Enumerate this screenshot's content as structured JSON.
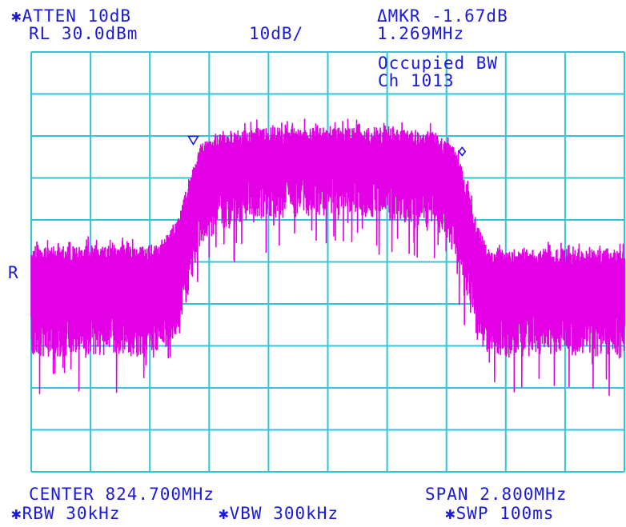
{
  "header": {
    "atten": "✱ATTEN 10dB",
    "ref_level": "RL 30.0dBm",
    "scale": "10dB/",
    "marker_delta": "ΔMKR -1.67dB",
    "marker_freq": "1.269MHz",
    "measurement": "Occupied BW",
    "channel": "Ch 1013"
  },
  "ref_marker_label": "R",
  "footer": {
    "center": "CENTER 824.700MHz",
    "span": "SPAN 2.800MHz",
    "rbw": "✱RBW 30kHz",
    "vbw": "✱VBW 300kHz",
    "sweep": "✱SWP 100ms"
  },
  "colors": {
    "text": "#1a1ad8",
    "grid": "#33c4d8",
    "trace": "#e400e4",
    "marker": "#1a1ad8"
  },
  "chart_data": {
    "type": "line",
    "title": "",
    "xlabel": "",
    "ylabel": "",
    "x_unit": "MHz",
    "y_unit": "dBm",
    "xlim": [
      823.3,
      826.1
    ],
    "ylim": [
      -70,
      30
    ],
    "grid": true,
    "divisions": {
      "x": 10,
      "y": 10
    },
    "series": [
      {
        "x": [
          823.3,
          823.6,
          823.9,
          823.95,
          824.0,
          824.05,
          824.1,
          824.2,
          824.4,
          824.6,
          824.8,
          825.0,
          825.2,
          825.3,
          825.35,
          825.4,
          825.45,
          825.5,
          825.8,
          826.1
        ],
        "y_peak": [
          -16,
          -16,
          -16,
          -13,
          -9,
          1,
          8,
          11,
          12,
          12,
          12,
          12,
          11,
          7,
          0,
          -10,
          -16,
          -17,
          -17,
          -17
        ],
        "y_floor": [
          -43,
          -42,
          -43,
          -41,
          -36,
          -26,
          -16,
          -12,
          -10,
          -9,
          -9,
          -10,
          -12,
          -18,
          -28,
          -38,
          -42,
          -43,
          -42,
          -43
        ]
      }
    ],
    "markers": [
      {
        "type": "reference",
        "x": 824.065,
        "y": 8
      },
      {
        "type": "delta",
        "x": 825.334,
        "y": 6.3
      }
    ]
  }
}
